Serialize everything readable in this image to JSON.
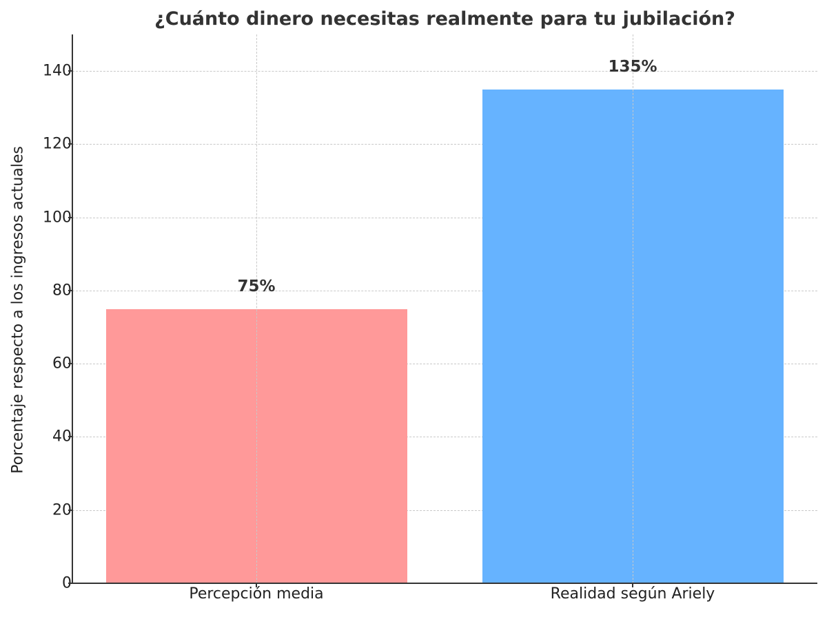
{
  "chart_data": {
    "type": "bar",
    "title": "¿Cuánto dinero necesitas realmente para tu jubilación?",
    "xlabel": "",
    "ylabel": "Porcentaje respecto a los ingresos actuales",
    "categories": [
      "Percepción media",
      "Realidad según Ariely"
    ],
    "values": [
      75,
      135
    ],
    "bar_labels": [
      "75%",
      "135%"
    ],
    "colors": [
      "#ff9999",
      "#66b3ff"
    ],
    "ylim": [
      0,
      150
    ],
    "yticks": [
      0,
      20,
      40,
      60,
      80,
      100,
      120,
      140
    ],
    "grid": true,
    "legend": null
  }
}
